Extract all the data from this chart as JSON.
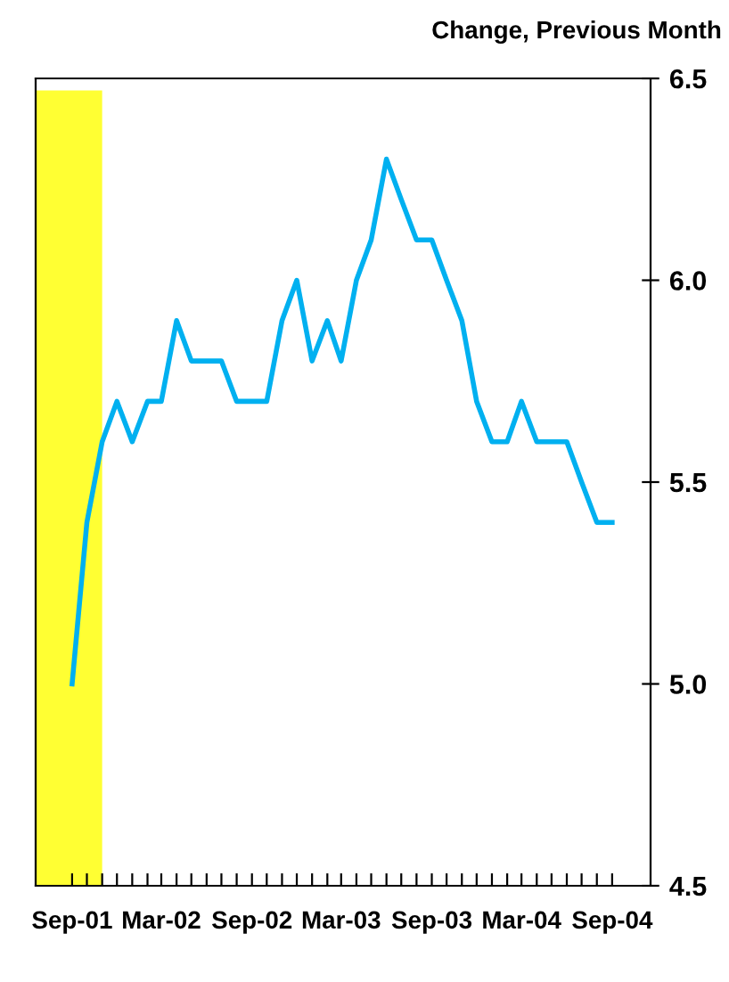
{
  "chart_data": {
    "type": "line",
    "ylabel": "Change, Previous Month",
    "x": [
      "2001-09",
      "2001-10",
      "2001-11",
      "2001-12",
      "2002-01",
      "2002-02",
      "2002-03",
      "2002-04",
      "2002-05",
      "2002-06",
      "2002-07",
      "2002-08",
      "2002-09",
      "2002-10",
      "2002-11",
      "2002-12",
      "2003-01",
      "2003-02",
      "2003-03",
      "2003-04",
      "2003-05",
      "2003-06",
      "2003-07",
      "2003-08",
      "2003-09",
      "2003-10",
      "2003-11",
      "2003-12",
      "2004-01",
      "2004-02",
      "2004-03",
      "2004-04",
      "2004-05",
      "2004-06",
      "2004-07",
      "2004-08",
      "2004-09"
    ],
    "series": [
      {
        "color": "#00b0f0",
        "values": [
          5.0,
          5.4,
          5.6,
          5.7,
          5.6,
          5.7,
          5.7,
          5.9,
          5.8,
          5.8,
          5.8,
          5.7,
          5.7,
          5.7,
          5.9,
          6.0,
          5.8,
          5.9,
          5.8,
          6.0,
          6.1,
          6.3,
          6.2,
          6.1,
          6.1,
          6.0,
          5.9,
          5.7,
          5.6,
          5.6,
          5.7,
          5.6,
          5.6,
          5.6,
          5.5,
          5.4,
          5.4
        ]
      }
    ],
    "xlim": [
      "2001-06-19",
      "2004-11-18"
    ],
    "xticks": [
      {
        "value": "2001-09",
        "label": "Sep-01"
      },
      {
        "value": "2001-10",
        "label": null
      },
      {
        "value": "2001-11",
        "label": null
      },
      {
        "value": "2001-12",
        "label": null
      },
      {
        "value": "2002-01",
        "label": null
      },
      {
        "value": "2002-02",
        "label": null
      },
      {
        "value": "2002-03",
        "label": "Mar-02"
      },
      {
        "value": "2002-04",
        "label": null
      },
      {
        "value": "2002-05",
        "label": null
      },
      {
        "value": "2002-06",
        "label": null
      },
      {
        "value": "2002-07",
        "label": null
      },
      {
        "value": "2002-08",
        "label": null
      },
      {
        "value": "2002-09",
        "label": "Sep-02"
      },
      {
        "value": "2002-10",
        "label": null
      },
      {
        "value": "2002-11",
        "label": null
      },
      {
        "value": "2002-12",
        "label": null
      },
      {
        "value": "2003-01",
        "label": null
      },
      {
        "value": "2003-02",
        "label": null
      },
      {
        "value": "2003-03",
        "label": "Mar-03"
      },
      {
        "value": "2003-04",
        "label": null
      },
      {
        "value": "2003-05",
        "label": null
      },
      {
        "value": "2003-06",
        "label": null
      },
      {
        "value": "2003-07",
        "label": null
      },
      {
        "value": "2003-08",
        "label": null
      },
      {
        "value": "2003-09",
        "label": "Sep-03"
      },
      {
        "value": "2003-10",
        "label": null
      },
      {
        "value": "2003-11",
        "label": null
      },
      {
        "value": "2003-12",
        "label": null
      },
      {
        "value": "2004-01",
        "label": null
      },
      {
        "value": "2004-02",
        "label": null
      },
      {
        "value": "2004-03",
        "label": "Mar-04"
      },
      {
        "value": "2004-04",
        "label": null
      },
      {
        "value": "2004-05",
        "label": null
      },
      {
        "value": "2004-06",
        "label": null
      },
      {
        "value": "2004-07",
        "label": null
      },
      {
        "value": "2004-08",
        "label": null
      },
      {
        "value": "2004-09",
        "label": "Sep-04"
      }
    ],
    "ylim": [
      4.5,
      6.5
    ],
    "yticks": [
      4.5,
      {
        "value": 5,
        "label": "5.0"
      },
      5.5,
      {
        "value": 6,
        "label": "6.0"
      },
      6.5
    ],
    "bands": [
      {
        "axis": "x",
        "from": "2001-06-19",
        "to": "2001-11",
        "color": "#ffff33"
      }
    ],
    "grid": false,
    "line_style": "solid",
    "marker": "none"
  }
}
